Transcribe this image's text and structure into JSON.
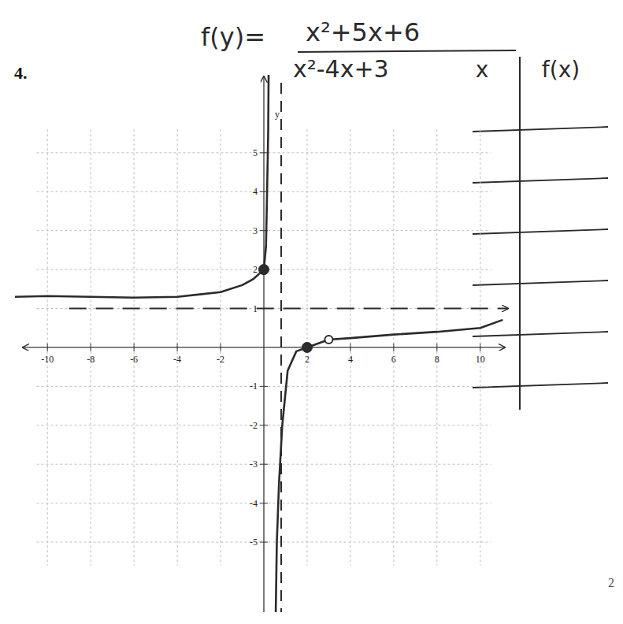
{
  "label": "4.",
  "formula": {
    "lhs": "f(y)=",
    "numerator": "x²+5x+6",
    "denominator": "x²-4x+3"
  },
  "table": {
    "headers": [
      "x",
      "f(x)"
    ],
    "rows": 6
  },
  "page_number": "2",
  "chart_data": {
    "type": "line",
    "ylabel": "y",
    "x": [
      -11.5,
      -10,
      -8,
      -6,
      -4,
      -2,
      -1,
      -0.5,
      0,
      0.1,
      0.15,
      0.2,
      0.22,
      null,
      0.55,
      0.6,
      0.7,
      0.85,
      1.1,
      1.5,
      2,
      3,
      4,
      6,
      8,
      10,
      11
    ],
    "values": [
      1.3,
      1.32,
      1.3,
      1.28,
      1.3,
      1.42,
      1.6,
      1.75,
      2,
      2.6,
      4,
      5.5,
      7,
      null,
      -6.8,
      -5,
      -3.5,
      -2,
      -0.6,
      -0.1,
      0,
      0.2,
      0.24,
      0.33,
      0.4,
      0.5,
      0.7
    ],
    "color": "#2b2b2b",
    "xlim": [
      -11.5,
      11.5
    ],
    "ylim": [
      -6.8,
      7
    ],
    "xticks": [
      -10,
      -8,
      -6,
      -4,
      -2,
      2,
      4,
      6,
      8,
      10
    ],
    "yticks": [
      -5,
      -4,
      -3,
      -2,
      -1,
      1,
      2,
      3,
      4,
      5
    ],
    "grid": true,
    "vertical_asymptote": 0.8,
    "horizontal_asymptote": 1,
    "closed_points": {
      "x": [
        0,
        2
      ],
      "y": [
        2,
        0
      ]
    },
    "open_points": {
      "x": [
        3
      ],
      "y": [
        0.2
      ]
    }
  }
}
